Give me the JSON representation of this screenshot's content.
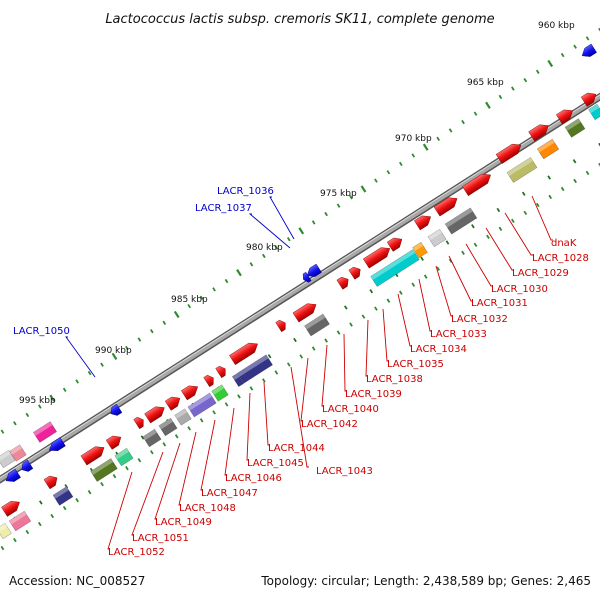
{
  "title": "Lactococcus lactis subsp. cremoris SK11, complete genome",
  "accession": "Accession: NC_008527",
  "summary": "Topology: circular; Length: 2,438,589 bp; Genes: 2,465",
  "scale_labels": [
    "960 kbp",
    "965 kbp",
    "970 kbp",
    "975 kbp",
    "980 kbp",
    "985 kbp",
    "990 kbp",
    "995 kbp"
  ],
  "gene_labels": [
    {
      "text": "LACR_1036",
      "color": "#0000cc"
    },
    {
      "text": "LACR_1037",
      "color": "#0000cc"
    },
    {
      "text": "LACR_1050",
      "color": "#0000cc"
    },
    {
      "text": "dnaK",
      "color": "#cc0000"
    },
    {
      "text": "LACR_1028",
      "color": "#cc0000"
    },
    {
      "text": "LACR_1029",
      "color": "#cc0000"
    },
    {
      "text": "LACR_1030",
      "color": "#cc0000"
    },
    {
      "text": "LACR_1031",
      "color": "#cc0000"
    },
    {
      "text": "LACR_1032",
      "color": "#cc0000"
    },
    {
      "text": "LACR_1033",
      "color": "#cc0000"
    },
    {
      "text": "LACR_1034",
      "color": "#cc0000"
    },
    {
      "text": "LACR_1035",
      "color": "#cc0000"
    },
    {
      "text": "LACR_1038",
      "color": "#cc0000"
    },
    {
      "text": "LACR_1039",
      "color": "#cc0000"
    },
    {
      "text": "LACR_1040",
      "color": "#cc0000"
    },
    {
      "text": "LACR_1042",
      "color": "#cc0000"
    },
    {
      "text": "LACR_1044",
      "color": "#cc0000"
    },
    {
      "text": "LACR_1045",
      "color": "#cc0000"
    },
    {
      "text": "LACR_1043",
      "color": "#cc0000"
    },
    {
      "text": "LACR_1046",
      "color": "#cc0000"
    },
    {
      "text": "LACR_1047",
      "color": "#cc0000"
    },
    {
      "text": "LACR_1048",
      "color": "#cc0000"
    },
    {
      "text": "LACR_1049",
      "color": "#cc0000"
    },
    {
      "text": "LACR_1051",
      "color": "#cc0000"
    },
    {
      "text": "LACR_1052",
      "color": "#cc0000"
    }
  ],
  "colors": {
    "backbone": "#8a8a8a",
    "forward_gene": "#ee1111",
    "reverse_gene": "#1111ee",
    "forward_label": "#cc0000",
    "reverse_label": "#0000cc",
    "tick_green": "#2e8b2e",
    "tick_dark_green": "#1f6f1f"
  }
}
